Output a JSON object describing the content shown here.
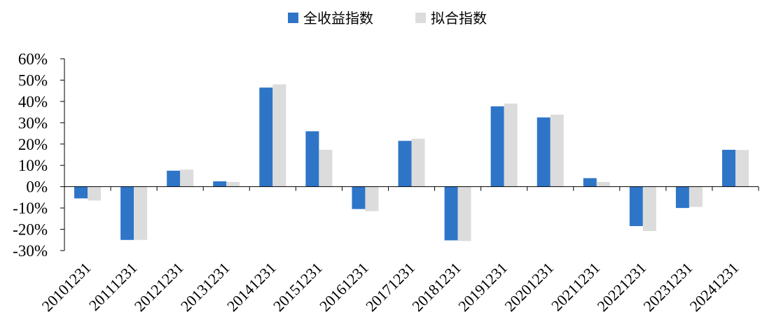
{
  "chart_data": {
    "type": "bar",
    "title": "",
    "xlabel": "",
    "ylabel": "",
    "legend_position": "top-center",
    "grid": false,
    "ylim": [
      -30,
      60
    ],
    "ytick_labels": [
      "60%",
      "50%",
      "40%",
      "30%",
      "20%",
      "10%",
      "0%",
      "-10%",
      "-20%",
      "-30%"
    ],
    "yticks": [
      60,
      50,
      40,
      30,
      20,
      10,
      0,
      -10,
      -20,
      -30
    ],
    "categories": [
      "20101231",
      "20111231",
      "20121231",
      "20131231",
      "20141231",
      "20151231",
      "20161231",
      "20171231",
      "20181231",
      "20191231",
      "20201231",
      "20211231",
      "20221231",
      "20231231",
      "20241231"
    ],
    "series": [
      {
        "name": "全收益指数",
        "color": "#2e75c8",
        "values": [
          -5.5,
          -25,
          7.5,
          2.5,
          46.5,
          26,
          -10.5,
          21.5,
          -25.2,
          37.7,
          32.5,
          4,
          -18.5,
          -10,
          17.3
        ]
      },
      {
        "name": "拟合指数",
        "color": "#dcdcdc",
        "values": [
          -6.5,
          -25,
          8,
          2.2,
          48,
          17.3,
          -11.5,
          22.5,
          -25.5,
          39,
          33.8,
          2.2,
          -20.8,
          -9.5,
          17.2
        ]
      }
    ]
  }
}
